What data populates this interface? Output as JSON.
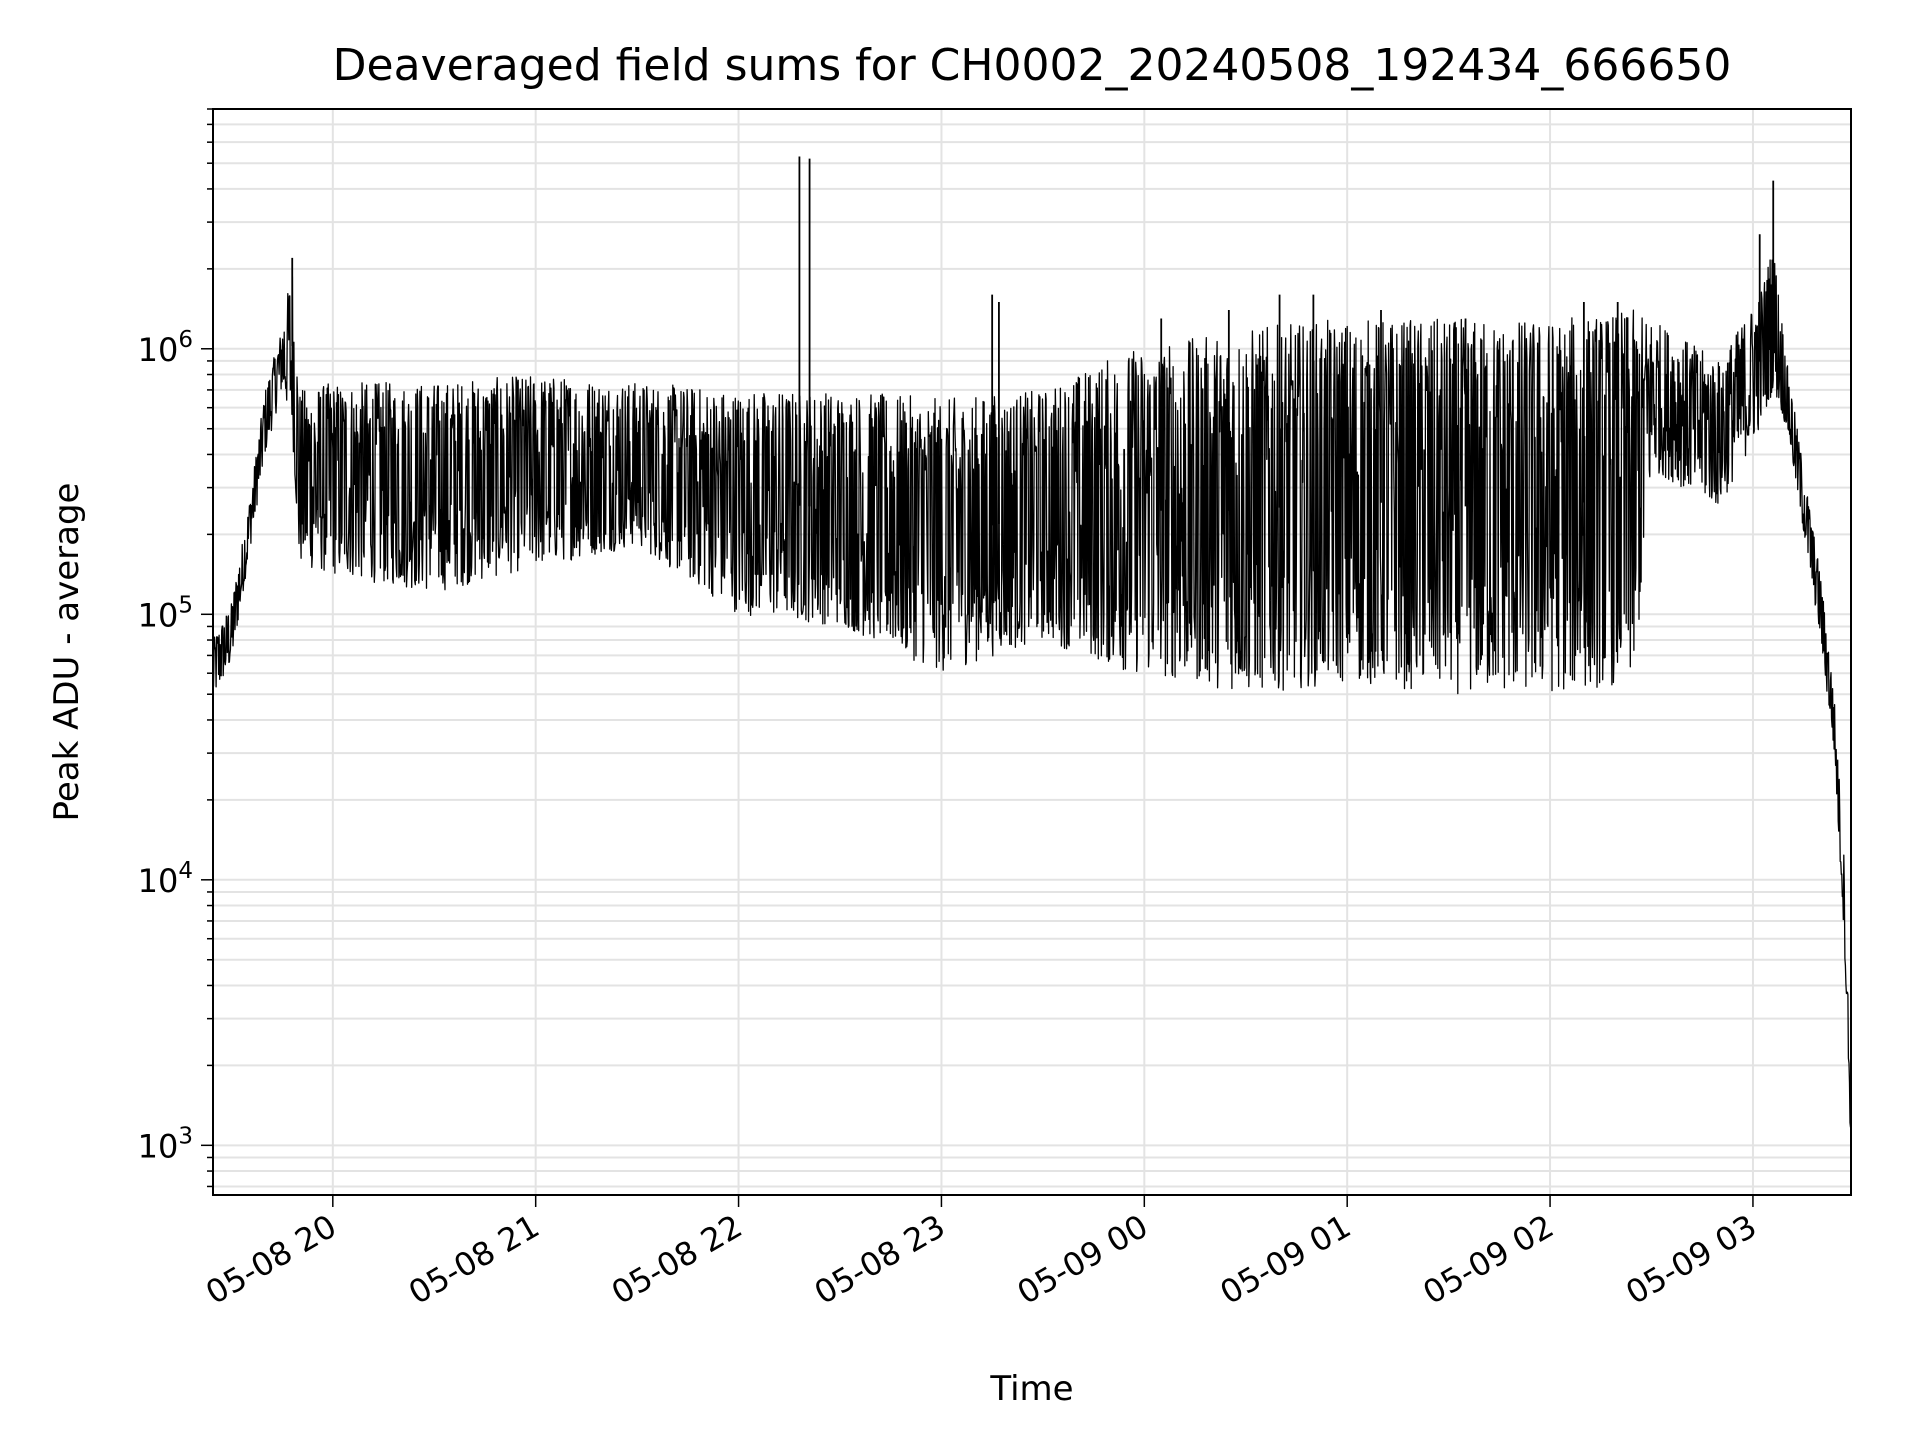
{
  "chart_data": {
    "type": "line",
    "title": "Deaveraged field sums for CH0002_20240508_192434_666650",
    "xlabel": "Time",
    "ylabel": "Peak ADU - average",
    "yscale": "log",
    "ylim": [
      650,
      8000000
    ],
    "xlim": [
      "2024-05-08 19:24:34",
      "2024-05-09 03:29:00"
    ],
    "grid": true,
    "line_color": "#000000",
    "x_ticks": [
      {
        "label": "05-08 20",
        "time": "2024-05-08 20:00"
      },
      {
        "label": "05-08 21",
        "time": "2024-05-08 21:00"
      },
      {
        "label": "05-08 22",
        "time": "2024-05-08 22:00"
      },
      {
        "label": "05-08 23",
        "time": "2024-05-08 23:00"
      },
      {
        "label": "05-09 00",
        "time": "2024-05-09 00:00"
      },
      {
        "label": "05-09 01",
        "time": "2024-05-09 01:00"
      },
      {
        "label": "05-09 02",
        "time": "2024-05-09 02:00"
      },
      {
        "label": "05-09 03",
        "time": "2024-05-09 03:00"
      }
    ],
    "y_ticks": [
      {
        "base": "10",
        "exp": "3",
        "value": 1000
      },
      {
        "base": "10",
        "exp": "4",
        "value": 10000
      },
      {
        "base": "10",
        "exp": "5",
        "value": 100000
      },
      {
        "base": "10",
        "exp": "6",
        "value": 1000000
      }
    ],
    "series": [
      {
        "envelope": [
          {
            "t": "2024-05-08 19:24:34",
            "low": 48000,
            "high": 80000
          },
          {
            "t": "2024-05-08 19:30",
            "low": 65000,
            "high": 110000
          },
          {
            "t": "2024-05-08 19:35",
            "low": 160000,
            "high": 250000
          },
          {
            "t": "2024-05-08 19:40",
            "low": 400000,
            "high": 700000
          },
          {
            "t": "2024-05-08 19:45",
            "low": 700000,
            "high": 1200000
          },
          {
            "t": "2024-05-08 19:48",
            "low": 500000,
            "high": 2100000
          },
          {
            "t": "2024-05-08 19:50",
            "low": 150000,
            "high": 700000
          },
          {
            "t": "2024-05-08 20:00",
            "low": 140000,
            "high": 750000
          },
          {
            "t": "2024-05-08 20:30",
            "low": 120000,
            "high": 750000
          },
          {
            "t": "2024-05-08 21:00",
            "low": 150000,
            "high": 800000
          },
          {
            "t": "2024-05-08 21:30",
            "low": 180000,
            "high": 750000
          },
          {
            "t": "2024-05-08 22:00",
            "low": 100000,
            "high": 700000
          },
          {
            "t": "2024-05-08 22:30",
            "low": 90000,
            "high": 700000
          },
          {
            "t": "2024-05-08 23:00",
            "low": 60000,
            "high": 650000
          },
          {
            "t": "2024-05-08 23:30",
            "low": 80000,
            "high": 700000
          },
          {
            "t": "2024-05-08 23:55",
            "low": 60000,
            "high": 1000000
          },
          {
            "t": "2024-05-09 00:15",
            "low": 55000,
            "high": 1100000
          },
          {
            "t": "2024-05-09 00:30",
            "low": 50000,
            "high": 1200000
          },
          {
            "t": "2024-05-09 01:00",
            "low": 55000,
            "high": 1300000
          },
          {
            "t": "2024-05-09 01:30",
            "low": 50000,
            "high": 1300000
          },
          {
            "t": "2024-05-09 02:00",
            "low": 50000,
            "high": 1300000
          },
          {
            "t": "2024-05-09 02:25",
            "low": 55000,
            "high": 1400000
          },
          {
            "t": "2024-05-09 02:30",
            "low": 350000,
            "high": 1300000
          },
          {
            "t": "2024-05-09 02:50",
            "low": 250000,
            "high": 900000
          },
          {
            "t": "2024-05-09 03:02",
            "low": 500000,
            "high": 1600000
          },
          {
            "t": "2024-05-09 03:06",
            "low": 700000,
            "high": 2500000
          },
          {
            "t": "2024-05-09 03:10",
            "low": 500000,
            "high": 900000
          },
          {
            "t": "2024-05-09 03:15",
            "low": 200000,
            "high": 350000
          },
          {
            "t": "2024-05-09 03:20",
            "low": 80000,
            "high": 140000
          },
          {
            "t": "2024-05-09 03:24",
            "low": 30000,
            "high": 50000
          },
          {
            "t": "2024-05-09 03:27",
            "low": 6000,
            "high": 12000
          },
          {
            "t": "2024-05-09 03:29",
            "low": 900,
            "high": 1500
          }
        ],
        "spikes": [
          {
            "t": "2024-05-08 19:48",
            "value": 2200000
          },
          {
            "t": "2024-05-08 22:18",
            "value": 5300000
          },
          {
            "t": "2024-05-08 22:21",
            "value": 5200000
          },
          {
            "t": "2024-05-08 23:15",
            "value": 1600000
          },
          {
            "t": "2024-05-08 23:17",
            "value": 1500000
          },
          {
            "t": "2024-05-09 00:05",
            "value": 1300000
          },
          {
            "t": "2024-05-09 00:25",
            "value": 1400000
          },
          {
            "t": "2024-05-09 00:40",
            "value": 1600000
          },
          {
            "t": "2024-05-09 00:50",
            "value": 1600000
          },
          {
            "t": "2024-05-09 01:10",
            "value": 1400000
          },
          {
            "t": "2024-05-09 01:35",
            "value": 1300000
          },
          {
            "t": "2024-05-09 02:10",
            "value": 1500000
          },
          {
            "t": "2024-05-09 02:20",
            "value": 1500000
          },
          {
            "t": "2024-05-09 03:02",
            "value": 2700000
          },
          {
            "t": "2024-05-09 03:06",
            "value": 4300000
          }
        ]
      }
    ]
  }
}
